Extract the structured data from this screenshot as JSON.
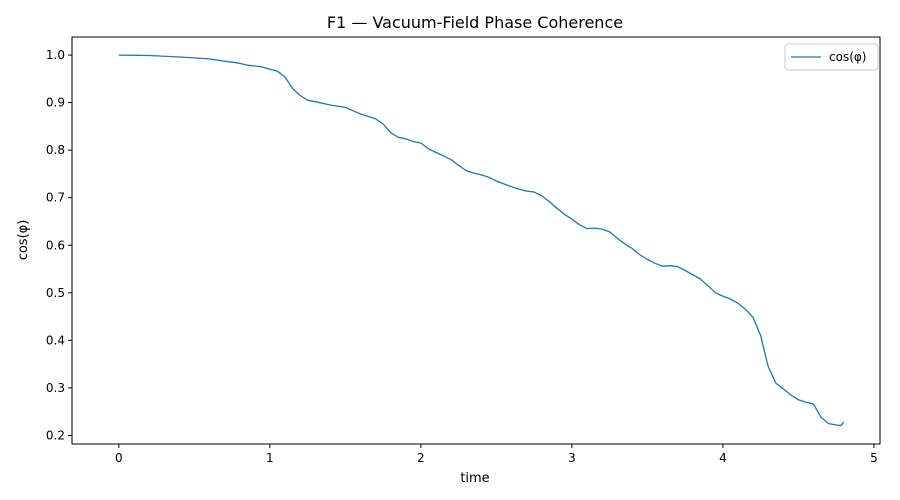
{
  "chart_data": {
    "type": "line",
    "title": "F1 — Vacuum-Field Phase Coherence",
    "xlabel": "time",
    "ylabel": "cos(φ)",
    "xlim": [
      -0.31,
      5.04
    ],
    "ylim": [
      0.182,
      1.038
    ],
    "xticks": [
      0,
      1,
      2,
      3,
      4,
      5
    ],
    "yticks": [
      0.2,
      0.3,
      0.4,
      0.5,
      0.6,
      0.7,
      0.8,
      0.9,
      1.0
    ],
    "xtick_labels": [
      "0",
      "1",
      "2",
      "3",
      "4",
      "5"
    ],
    "ytick_labels": [
      "0.2",
      "0.3",
      "0.4",
      "0.5",
      "0.6",
      "0.7",
      "0.8",
      "0.9",
      "1.0"
    ],
    "grid": false,
    "legend_position": "top-right",
    "line_color": "#1f77b4",
    "series": [
      {
        "name": "cos(φ)",
        "x": [
          0.0,
          0.2,
          0.4,
          0.5,
          0.6,
          0.7,
          0.8,
          0.85,
          0.9,
          0.95,
          1.0,
          1.05,
          1.1,
          1.15,
          1.2,
          1.25,
          1.3,
          1.4,
          1.5,
          1.55,
          1.6,
          1.7,
          1.75,
          1.8,
          1.85,
          1.9,
          1.95,
          2.0,
          2.05,
          2.1,
          2.15,
          2.2,
          2.25,
          2.3,
          2.35,
          2.4,
          2.45,
          2.5,
          2.55,
          2.6,
          2.65,
          2.7,
          2.75,
          2.8,
          2.85,
          2.9,
          2.95,
          3.0,
          3.05,
          3.1,
          3.15,
          3.2,
          3.25,
          3.3,
          3.35,
          3.4,
          3.45,
          3.5,
          3.55,
          3.6,
          3.65,
          3.7,
          3.75,
          3.8,
          3.85,
          3.9,
          3.95,
          4.0,
          4.05,
          4.1,
          4.15,
          4.2,
          4.25,
          4.28,
          4.3,
          4.35,
          4.4,
          4.45,
          4.5,
          4.55,
          4.6,
          4.65,
          4.7,
          4.75,
          4.78,
          4.8
        ],
        "y": [
          1.0,
          0.999,
          0.996,
          0.994,
          0.992,
          0.987,
          0.983,
          0.979,
          0.977,
          0.975,
          0.97,
          0.966,
          0.954,
          0.93,
          0.915,
          0.905,
          0.902,
          0.895,
          0.89,
          0.883,
          0.876,
          0.866,
          0.855,
          0.837,
          0.827,
          0.824,
          0.818,
          0.815,
          0.803,
          0.795,
          0.788,
          0.78,
          0.768,
          0.757,
          0.752,
          0.748,
          0.743,
          0.735,
          0.729,
          0.723,
          0.718,
          0.714,
          0.712,
          0.704,
          0.692,
          0.678,
          0.665,
          0.655,
          0.643,
          0.635,
          0.636,
          0.634,
          0.628,
          0.615,
          0.603,
          0.593,
          0.58,
          0.57,
          0.562,
          0.556,
          0.557,
          0.555,
          0.547,
          0.538,
          0.529,
          0.515,
          0.5,
          0.493,
          0.487,
          0.478,
          0.465,
          0.448,
          0.41,
          0.37,
          0.345,
          0.31,
          0.298,
          0.285,
          0.275,
          0.27,
          0.266,
          0.238,
          0.225,
          0.222,
          0.221,
          0.228
        ]
      }
    ]
  }
}
